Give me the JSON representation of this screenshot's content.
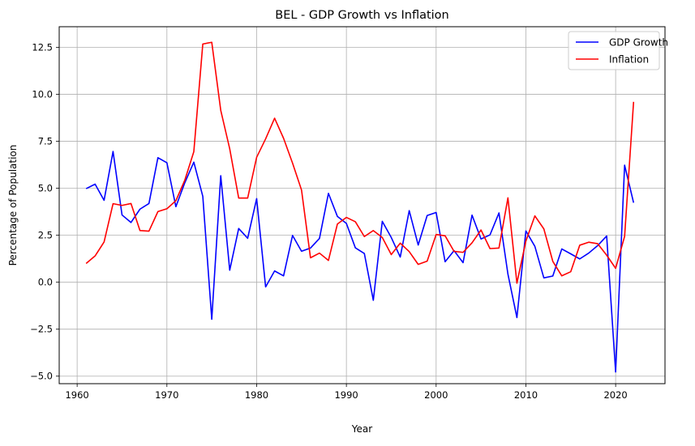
{
  "colors": {
    "gdp": "#0000ff",
    "inflation": "#ff0000",
    "grid": "#b0b0b0",
    "axis": "#000000",
    "background": "#ffffff"
  },
  "chart_data": {
    "type": "line",
    "title": "BEL - GDP Growth vs Inflation",
    "xlabel": "Year",
    "ylabel": "Percentage of Population",
    "xlim": [
      1958,
      2025.5
    ],
    "ylim": [
      -5.4,
      13.6
    ],
    "xticks": [
      1960,
      1970,
      1980,
      1990,
      2000,
      2010,
      2020
    ],
    "xtick_labels": [
      "1960",
      "1970",
      "1980",
      "1990",
      "2000",
      "2010",
      "2020"
    ],
    "yticks": [
      -5.0,
      -2.5,
      0.0,
      2.5,
      5.0,
      7.5,
      10.0,
      12.5
    ],
    "ytick_labels": [
      "−5.0",
      "−2.5",
      "0.0",
      "2.5",
      "5.0",
      "7.5",
      "10.0",
      "12.5"
    ],
    "grid": true,
    "legend_position": "top-right",
    "x": [
      1961,
      1962,
      1963,
      1964,
      1965,
      1966,
      1967,
      1968,
      1969,
      1970,
      1971,
      1972,
      1973,
      1974,
      1975,
      1976,
      1977,
      1978,
      1979,
      1980,
      1981,
      1982,
      1983,
      1984,
      1985,
      1986,
      1987,
      1988,
      1989,
      1990,
      1991,
      1992,
      1993,
      1994,
      1995,
      1996,
      1997,
      1998,
      1999,
      2000,
      2001,
      2002,
      2003,
      2004,
      2005,
      2006,
      2007,
      2008,
      2009,
      2010,
      2011,
      2012,
      2013,
      2014,
      2015,
      2016,
      2017,
      2018,
      2019,
      2020,
      2021,
      2022
    ],
    "series": [
      {
        "name": "GDP Growth",
        "color": "#0000ff",
        "values": [
          4.98,
          5.22,
          4.36,
          6.96,
          3.58,
          3.18,
          3.89,
          4.19,
          6.63,
          6.36,
          4.02,
          5.3,
          6.39,
          4.57,
          -1.97,
          5.67,
          0.64,
          2.86,
          2.34,
          4.45,
          -0.25,
          0.6,
          0.34,
          2.49,
          1.65,
          1.82,
          2.33,
          4.73,
          3.5,
          3.13,
          1.83,
          1.53,
          -0.96,
          3.24,
          2.38,
          1.34,
          3.81,
          1.98,
          3.55,
          3.71,
          1.09,
          1.68,
          1.04,
          3.57,
          2.3,
          2.52,
          3.69,
          0.43,
          -1.88,
          2.73,
          1.91,
          0.23,
          0.33,
          1.77,
          1.51,
          1.24,
          1.55,
          1.95,
          2.46,
          -4.78,
          6.23,
          4.23
        ]
      },
      {
        "name": "Inflation",
        "color": "#ff0000",
        "values": [
          1.0,
          1.4,
          2.14,
          4.18,
          4.09,
          4.19,
          2.75,
          2.72,
          3.76,
          3.91,
          4.34,
          5.44,
          6.95,
          12.68,
          12.77,
          9.15,
          7.1,
          4.48,
          4.48,
          6.65,
          7.63,
          8.73,
          7.66,
          6.34,
          4.91,
          1.3,
          1.55,
          1.16,
          3.1,
          3.45,
          3.22,
          2.43,
          2.75,
          2.38,
          1.47,
          2.08,
          1.63,
          0.95,
          1.12,
          2.54,
          2.47,
          1.64,
          1.59,
          2.1,
          2.78,
          1.79,
          1.82,
          4.49,
          -0.05,
          2.19,
          3.53,
          2.84,
          1.11,
          0.34,
          0.56,
          1.97,
          2.13,
          2.05,
          1.44,
          0.74,
          2.44,
          9.6
        ]
      }
    ]
  }
}
